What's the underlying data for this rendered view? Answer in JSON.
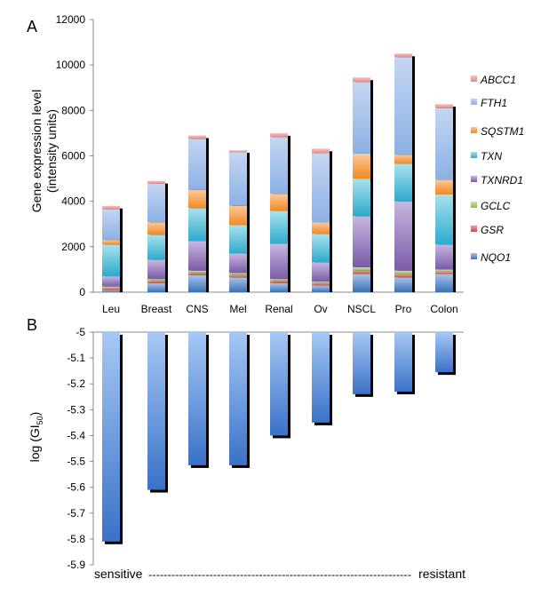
{
  "panels": {
    "a_label": "A",
    "b_label": "B"
  },
  "colors": {
    "NQO1": [
      "#a8c4e6",
      "#3c6fb8"
    ],
    "GSR": [
      "#f0a09a",
      "#c0504d"
    ],
    "GCLC": [
      "#cce5a8",
      "#8db84a"
    ],
    "TXNRD1": [
      "#c8b6e0",
      "#7a5ba8"
    ],
    "TXN": [
      "#a8e2ee",
      "#2eaacc"
    ],
    "SQSTM1": [
      "#fcc898",
      "#f08a24"
    ],
    "FTH1": [
      "#c4d6f2",
      "#8cb0e4"
    ],
    "ABCC1": [
      "#fac0c0",
      "#e88888"
    ],
    "gi50": [
      "#a6c8f4",
      "#3a72c8"
    ],
    "shadow": "#000000",
    "axis": "#888888"
  },
  "chart_data": [
    {
      "type": "bar",
      "stacked": true,
      "categories": [
        "Leu",
        "Breast",
        "CNS",
        "Mel",
        "Renal",
        "Ov",
        "NSCL",
        "Pro",
        "Colon"
      ],
      "ylabel_line1": "Gene expression level",
      "ylabel_line2": "(intensity units)",
      "ylim": [
        0,
        12000
      ],
      "yticks": [
        0,
        2000,
        4000,
        6000,
        8000,
        10000,
        12000
      ],
      "ytick_labels": [
        "0",
        "2000",
        "4000",
        "6000",
        "8000",
        "10000",
        "12000"
      ],
      "legend_position": "right",
      "legend": [
        "ABCC1",
        "FTH1",
        "SQSTM1",
        "TXN",
        "TXNRD1",
        "GCLC",
        "GSR",
        "NQO1"
      ],
      "series": [
        {
          "name": "NQO1",
          "values": [
            80,
            400,
            750,
            650,
            400,
            300,
            800,
            650,
            800
          ]
        },
        {
          "name": "GSR",
          "values": [
            100,
            100,
            100,
            100,
            100,
            100,
            150,
            150,
            100
          ]
        },
        {
          "name": "GCLC",
          "values": [
            70,
            80,
            100,
            100,
            80,
            70,
            150,
            150,
            100
          ]
        },
        {
          "name": "TXNRD1",
          "values": [
            450,
            850,
            1300,
            850,
            1550,
            850,
            2250,
            3050,
            1100
          ]
        },
        {
          "name": "TXN",
          "values": [
            1400,
            1100,
            1450,
            1250,
            1450,
            1250,
            1650,
            1650,
            2200
          ]
        },
        {
          "name": "SQSTM1",
          "values": [
            200,
            550,
            800,
            850,
            750,
            500,
            1100,
            400,
            650
          ]
        },
        {
          "name": "FTH1",
          "values": [
            1350,
            1700,
            2250,
            2350,
            2500,
            3050,
            3150,
            4300,
            3150
          ]
        },
        {
          "name": "ABCC1",
          "values": [
            150,
            120,
            150,
            100,
            170,
            200,
            200,
            150,
            180
          ]
        }
      ]
    },
    {
      "type": "bar",
      "baseline": -5,
      "categories": [
        "Leu",
        "Breast",
        "CNS",
        "Mel",
        "Renal",
        "Ov",
        "NSCL",
        "Pro",
        "Colon"
      ],
      "values": [
        -5.81,
        -5.61,
        -5.515,
        -5.515,
        -5.4,
        -5.35,
        -5.24,
        -5.23,
        -5.155
      ],
      "ylabel_prefix": "log (GI",
      "ylabel_sub": "50",
      "ylabel_suffix": ")",
      "ylim": [
        -5.9,
        -5.0
      ],
      "yticks": [
        -5,
        -5.1,
        -5.2,
        -5.3,
        -5.4,
        -5.5,
        -5.6,
        -5.7,
        -5.8,
        -5.9
      ],
      "ytick_labels": [
        "-5",
        "-5.1",
        "-5.2",
        "-5.3",
        "-5.4",
        "-5.5",
        "-5.6",
        "-5.7",
        "-5.8",
        "-5.9"
      ],
      "xlabel_left": "sensitive",
      "xlabel_dashes": "---------------------------------------------------------------------",
      "xlabel_right": "resistant"
    }
  ]
}
